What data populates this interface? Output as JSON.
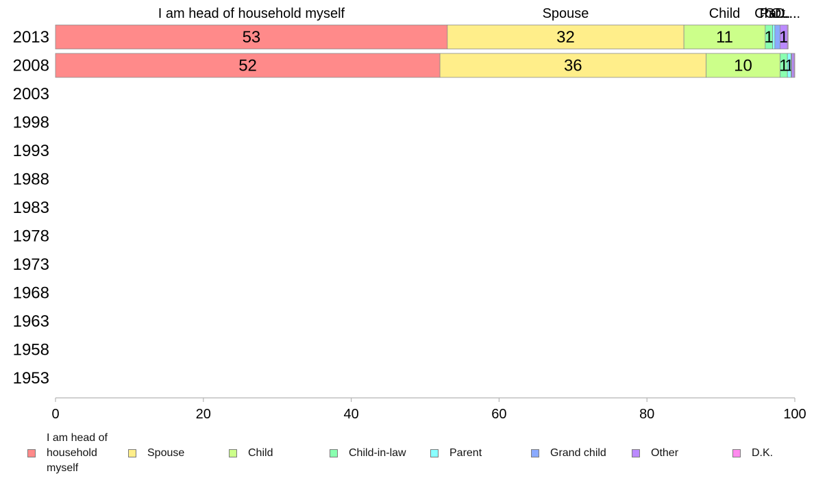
{
  "chart_data": {
    "type": "bar",
    "orientation": "horizontal",
    "stacked": true,
    "categories": [
      "2013",
      "2008",
      "2003",
      "1998",
      "1993",
      "1988",
      "1983",
      "1978",
      "1973",
      "1968",
      "1963",
      "1958",
      "1953"
    ],
    "series": [
      {
        "name": "I am head of household myself",
        "color": "#ff8a8a",
        "values": [
          53,
          52,
          null,
          null,
          null,
          null,
          null,
          null,
          null,
          null,
          null,
          null,
          null
        ]
      },
      {
        "name": "Spouse",
        "color": "#ffee8a",
        "values": [
          32,
          36,
          null,
          null,
          null,
          null,
          null,
          null,
          null,
          null,
          null,
          null,
          null
        ]
      },
      {
        "name": "Child",
        "color": "#ccff8a",
        "values": [
          11,
          10,
          null,
          null,
          null,
          null,
          null,
          null,
          null,
          null,
          null,
          null,
          null
        ]
      },
      {
        "name": "Child-in-law",
        "color": "#8affb0",
        "values": [
          1,
          1,
          null,
          null,
          null,
          null,
          null,
          null,
          null,
          null,
          null,
          null,
          null
        ]
      },
      {
        "name": "Parent",
        "color": "#8affff",
        "values": [
          0.3,
          0.5,
          null,
          null,
          null,
          null,
          null,
          null,
          null,
          null,
          null,
          null,
          null
        ]
      },
      {
        "name": "Grand child",
        "color": "#8aaaff",
        "values": [
          0.7,
          0.1,
          null,
          null,
          null,
          null,
          null,
          null,
          null,
          null,
          null,
          null,
          null
        ]
      },
      {
        "name": "Other",
        "color": "#bb8aff",
        "values": [
          1,
          0.3,
          null,
          null,
          null,
          null,
          null,
          null,
          null,
          null,
          null,
          null,
          null
        ]
      },
      {
        "name": "D.K.",
        "color": "#ff8aee",
        "values": [
          0.1,
          0.1,
          null,
          null,
          null,
          null,
          null,
          null,
          null,
          null,
          null,
          null,
          null
        ]
      }
    ],
    "data_labels": [
      [
        "53",
        "32",
        "11",
        "1",
        "",
        "",
        "1",
        ""
      ],
      [
        "52",
        "36",
        "10",
        "1",
        "1",
        "",
        "",
        ""
      ]
    ],
    "top_labels": [
      "I am head of household myself",
      "Spouse",
      "Child",
      "Ch...",
      "Pa...",
      "Gr...",
      "Ot...",
      "D...."
    ],
    "xlim": [
      0,
      100
    ],
    "xticks": [
      0,
      20,
      40,
      60,
      80,
      100
    ],
    "legend_position": "bottom",
    "grid": false,
    "title": "",
    "xlabel": "",
    "ylabel": ""
  },
  "legend": {
    "items": [
      {
        "label": "I am head of\nhousehold\nmyself",
        "color": "#ff8a8a"
      },
      {
        "label": "Spouse",
        "color": "#ffee8a"
      },
      {
        "label": "Child",
        "color": "#ccff8a"
      },
      {
        "label": "Child-in-law",
        "color": "#8affb0"
      },
      {
        "label": "Parent",
        "color": "#8affff"
      },
      {
        "label": "Grand child",
        "color": "#8aaaff"
      },
      {
        "label": "Other",
        "color": "#bb8aff"
      },
      {
        "label": "D.K.",
        "color": "#ff8aee"
      }
    ]
  }
}
